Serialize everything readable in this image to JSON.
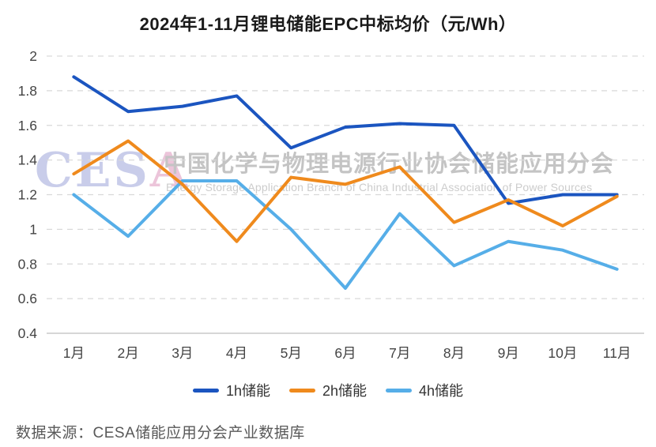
{
  "title": "2024年1-11月锂电储能EPC中标均价（元/Wh）",
  "source_note": "数据来源：CESA储能应用分会产业数据库",
  "watermark": {
    "logo_prefix": "CES",
    "logo_suffix": "A",
    "line_cn": "中国化学与物理电源行业协会储能应用分会",
    "line_en": "Energy Storage Application Branch of China Industrial Association of Power Sources"
  },
  "colors": {
    "title_text": "#1a1a1a",
    "grid_line": "#d9d9d9",
    "axis_line": "#c9c9c9",
    "tick_label": "#444444",
    "legend_text": "#333333",
    "source_text": "#595959",
    "watermark_logo_ces": "#c9cdea",
    "watermark_logo_a": "#ecc5da",
    "watermark_cn": "#c4c4c4",
    "watermark_en": "#cccccc"
  },
  "chart_data": {
    "type": "line",
    "title": "2024年1-11月锂电储能EPC中标均价（元/Wh）",
    "xlabel": "",
    "ylabel": "",
    "ylim": [
      0.4,
      2.0
    ],
    "yticks": [
      "2",
      "1.8",
      "1.6",
      "1.4",
      "1.2",
      "1",
      "0.8",
      "0.6",
      "0.4"
    ],
    "grid": "horizontal-dashed",
    "legend_position": "bottom",
    "categories": [
      "1月",
      "2月",
      "3月",
      "4月",
      "5月",
      "6月",
      "7月",
      "8月",
      "9月",
      "10月",
      "11月"
    ],
    "series": [
      {
        "name": "1h储能",
        "color": "#1b55c0",
        "values": [
          1.88,
          1.68,
          1.71,
          1.77,
          1.47,
          1.59,
          1.61,
          1.6,
          1.15,
          1.2,
          1.2
        ]
      },
      {
        "name": "2h储能",
        "color": "#ef8a1d",
        "values": [
          1.32,
          1.51,
          1.26,
          0.93,
          1.3,
          1.26,
          1.36,
          1.04,
          1.17,
          1.02,
          1.19
        ]
      },
      {
        "name": "4h储能",
        "color": "#56aee8",
        "values": [
          1.2,
          0.96,
          1.28,
          1.28,
          1.0,
          0.66,
          1.09,
          0.79,
          0.93,
          0.88,
          0.77
        ]
      }
    ],
    "draw_order": [
      0,
      2,
      1
    ]
  }
}
